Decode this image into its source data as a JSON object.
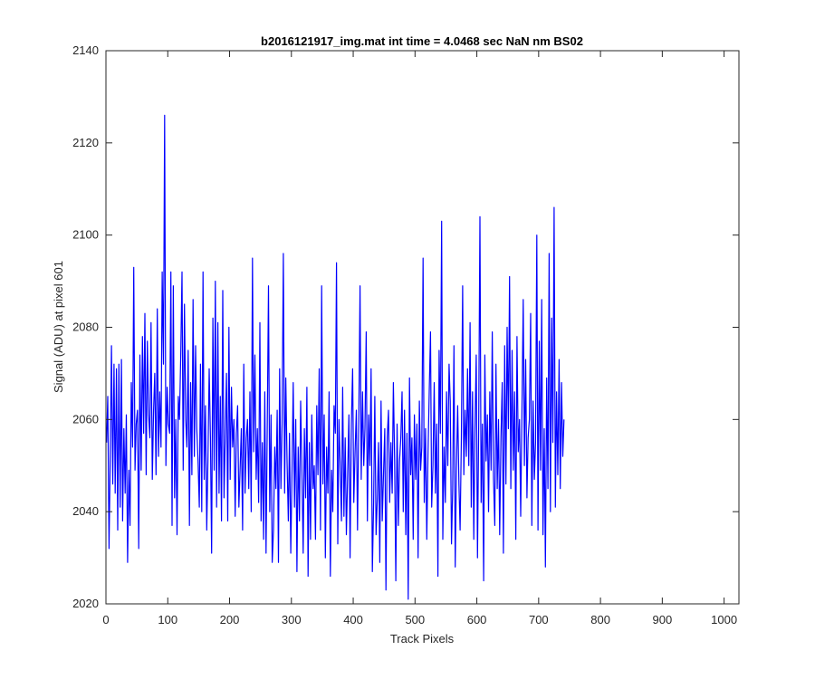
{
  "chart_data": {
    "type": "line",
    "title": "b2016121917_img.mat int time = 4.0468 sec  NaN nm BS02",
    "xlabel": "Track Pixels",
    "ylabel": "Signal (ADU) at pixel 601",
    "xlim": [
      0,
      1024
    ],
    "ylim": [
      2020,
      2140
    ],
    "xticks": [
      0,
      100,
      200,
      300,
      400,
      500,
      600,
      700,
      800,
      900,
      1000
    ],
    "yticks": [
      2020,
      2040,
      2060,
      2080,
      2100,
      2120,
      2140
    ],
    "grid": false,
    "series": [
      {
        "color": "#0000ff",
        "x_start": 1,
        "x_step": 2,
        "values": [
          2055,
          2065,
          2032,
          2053,
          2076,
          2046,
          2072,
          2044,
          2071,
          2036,
          2072,
          2041,
          2073,
          2038,
          2058,
          2044,
          2061,
          2029,
          2049,
          2037,
          2068,
          2054,
          2093,
          2049,
          2059,
          2062,
          2032,
          2074,
          2049,
          2078,
          2057,
          2083,
          2048,
          2077,
          2061,
          2056,
          2081,
          2047,
          2062,
          2070,
          2048,
          2084,
          2052,
          2066,
          2054,
          2092,
          2072,
          2126,
          2050,
          2067,
          2059,
          2057,
          2092,
          2037,
          2089,
          2043,
          2060,
          2035,
          2065,
          2060,
          2074,
          2092,
          2049,
          2085,
          2060,
          2054,
          2075,
          2037,
          2068,
          2048,
          2086,
          2052,
          2076,
          2058,
          2051,
          2041,
          2072,
          2040,
          2092,
          2047,
          2063,
          2036,
          2051,
          2071,
          2056,
          2031,
          2082,
          2049,
          2090,
          2041,
          2081,
          2044,
          2065,
          2038,
          2088,
          2043,
          2056,
          2070,
          2038,
          2080,
          2047,
          2067,
          2054,
          2060,
          2039,
          2057,
          2063,
          2041,
          2049,
          2058,
          2036,
          2072,
          2044,
          2056,
          2060,
          2045,
          2066,
          2040,
          2095,
          2053,
          2074,
          2047,
          2058,
          2042,
          2081,
          2038,
          2055,
          2034,
          2066,
          2031,
          2060,
          2089,
          2040,
          2061,
          2029,
          2036,
          2054,
          2045,
          2062,
          2029,
          2071,
          2045,
          2059,
          2096,
          2044,
          2069,
          2051,
          2038,
          2057,
          2031,
          2049,
          2068,
          2041,
          2060,
          2027,
          2054,
          2038,
          2064,
          2049,
          2031,
          2058,
          2043,
          2067,
          2026,
          2055,
          2034,
          2061,
          2045,
          2050,
          2034,
          2063,
          2048,
          2071,
          2036,
          2089,
          2046,
          2061,
          2030,
          2054,
          2044,
          2066,
          2026,
          2049,
          2040,
          2063,
          2057,
          2094,
          2033,
          2060,
          2050,
          2038,
          2067,
          2039,
          2056,
          2035,
          2048,
          2061,
          2030,
          2059,
          2071,
          2042,
          2053,
          2062,
          2036,
          2060,
          2089,
          2047,
          2066,
          2050,
          2058,
          2079,
          2038,
          2061,
          2050,
          2071,
          2027,
          2042,
          2065,
          2035,
          2043,
          2055,
          2029,
          2064,
          2038,
          2048,
          2058,
          2023,
          2056,
          2062,
          2042,
          2055,
          2044,
          2068,
          2051,
          2025,
          2059,
          2037,
          2051,
          2056,
          2066,
          2040,
          2062,
          2035,
          2057,
          2021,
          2069,
          2048,
          2056,
          2034,
          2061,
          2047,
          2059,
          2030,
          2064,
          2049,
          2054,
          2095,
          2042,
          2058,
          2034,
          2052,
          2066,
          2079,
          2041,
          2050,
          2068,
          2044,
          2059,
          2026,
          2075,
          2057,
          2103,
          2034,
          2054,
          2042,
          2066,
          2050,
          2072,
          2064,
          2033,
          2045,
          2076,
          2028,
          2049,
          2063,
          2046,
          2036,
          2056,
          2089,
          2048,
          2062,
          2052,
          2071,
          2050,
          2081,
          2041,
          2066,
          2034,
          2058,
          2074,
          2030,
          2058,
          2104,
          2042,
          2059,
          2025,
          2074,
          2051,
          2061,
          2040,
          2066,
          2049,
          2079,
          2047,
          2037,
          2072,
          2045,
          2060,
          2035,
          2056,
          2068,
          2031,
          2076,
          2046,
          2080,
          2058,
          2091,
          2045,
          2075,
          2049,
          2066,
          2034,
          2078,
          2053,
          2060,
          2039,
          2062,
          2086,
          2050,
          2073,
          2043,
          2056,
          2060,
          2083,
          2037,
          2064,
          2047,
          2055,
          2100,
          2036,
          2077,
          2049,
          2086,
          2035,
          2058,
          2028,
          2069,
          2045,
          2096,
          2040,
          2082,
          2055,
          2106,
          2041,
          2066,
          2048,
          2073,
          2045,
          2068,
          2052,
          2060
        ]
      }
    ]
  }
}
